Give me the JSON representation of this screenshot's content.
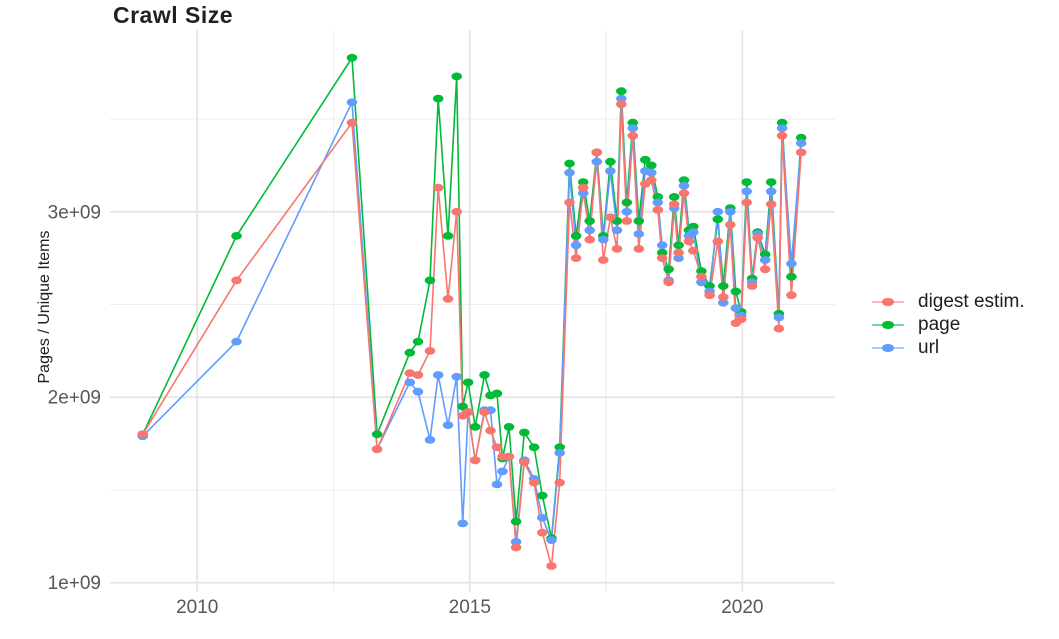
{
  "chart": {
    "title": "Crawl Size",
    "y_axis_label": "Pages / Unique Items"
  },
  "legend": {
    "items": [
      {
        "label": "digest estim.",
        "color": "#F8766D"
      },
      {
        "label": "page",
        "color": "#00BA38"
      },
      {
        "label": "url",
        "color": "#619CFF"
      }
    ]
  },
  "chart_data": {
    "type": "line",
    "title": "Crawl Size",
    "xlabel": "",
    "ylabel": "Pages / Unique Items",
    "x_unit": "decimal year (crawl date)",
    "values_unit": "billions (value x 1e9 pages / unique items)",
    "grid": true,
    "legend_position": "right",
    "background": "#FFFFFF",
    "gridline_major_color": "#E4E4E4",
    "gridline_minor_color": "#EDEDED",
    "x_domain": [
      2008.4,
      2021.7
    ],
    "y_domain": [
      0.95,
      3.98
    ],
    "x_ticks": {
      "major": [
        2010,
        2015,
        2020
      ],
      "labels": [
        "2010",
        "2015",
        "2020"
      ],
      "minor": [
        2012.5,
        2017.5
      ]
    },
    "y_ticks": {
      "major": [
        1,
        2,
        3
      ],
      "labels": [
        "1e+09",
        "2e+09",
        "3e+09"
      ],
      "minor": [
        1.5,
        2.5,
        3.5
      ]
    },
    "x": [
      2009.0,
      2010.72,
      2012.84,
      2013.3,
      2013.9,
      2014.05,
      2014.27,
      2014.42,
      2014.6,
      2014.76,
      2014.87,
      2014.97,
      2015.1,
      2015.27,
      2015.38,
      2015.5,
      2015.6,
      2015.72,
      2015.85,
      2016.0,
      2016.18,
      2016.33,
      2016.5,
      2016.65,
      2016.83,
      2016.95,
      2017.08,
      2017.2,
      2017.33,
      2017.45,
      2017.58,
      2017.7,
      2017.78,
      2017.88,
      2017.99,
      2018.1,
      2018.22,
      2018.33,
      2018.45,
      2018.53,
      2018.65,
      2018.75,
      2018.83,
      2018.93,
      2019.02,
      2019.1,
      2019.25,
      2019.4,
      2019.55,
      2019.65,
      2019.78,
      2019.88,
      2019.98,
      2020.08,
      2020.18,
      2020.28,
      2020.42,
      2020.53,
      2020.67,
      2020.73,
      2020.9,
      2021.08
    ],
    "series": [
      {
        "name": "page",
        "color": "#00BA38",
        "values": [
          1.8,
          2.87,
          3.83,
          1.8,
          2.24,
          2.3,
          2.63,
          3.61,
          2.87,
          3.73,
          1.95,
          2.08,
          1.84,
          2.12,
          2.01,
          2.02,
          1.67,
          1.84,
          1.33,
          1.81,
          1.73,
          1.47,
          1.24,
          1.73,
          3.26,
          2.87,
          3.16,
          2.95,
          3.32,
          2.87,
          3.27,
          2.95,
          3.65,
          3.05,
          3.48,
          2.95,
          3.28,
          3.25,
          3.08,
          2.78,
          2.69,
          3.08,
          2.82,
          3.17,
          2.9,
          2.92,
          2.68,
          2.6,
          2.96,
          2.6,
          3.02,
          2.57,
          2.46,
          3.16,
          2.64,
          2.89,
          2.77,
          3.16,
          2.45,
          3.48,
          2.65,
          3.4
        ]
      },
      {
        "name": "url",
        "color": "#619CFF",
        "values": [
          1.79,
          2.3,
          3.59,
          1.72,
          2.08,
          2.03,
          1.77,
          2.12,
          1.85,
          2.11,
          1.32,
          1.92,
          1.66,
          1.93,
          1.93,
          1.53,
          1.6,
          1.68,
          1.22,
          1.66,
          1.56,
          1.35,
          1.23,
          1.7,
          3.21,
          2.82,
          3.1,
          2.9,
          3.27,
          2.85,
          3.22,
          2.9,
          3.61,
          3.0,
          3.45,
          2.88,
          3.22,
          3.21,
          3.05,
          2.82,
          2.63,
          3.02,
          2.75,
          3.14,
          2.87,
          2.89,
          2.62,
          2.57,
          3.0,
          2.51,
          3.0,
          2.48,
          2.44,
          3.11,
          2.62,
          2.88,
          2.74,
          3.11,
          2.43,
          3.45,
          2.72,
          3.37
        ]
      },
      {
        "name": "digest estim.",
        "color": "#F8766D",
        "values": [
          1.8,
          2.63,
          3.48,
          1.72,
          2.13,
          2.12,
          2.25,
          3.13,
          2.53,
          3.0,
          1.9,
          1.92,
          1.66,
          1.92,
          1.82,
          1.73,
          1.68,
          1.68,
          1.19,
          1.65,
          1.54,
          1.27,
          1.09,
          1.54,
          3.05,
          2.75,
          3.13,
          2.85,
          3.32,
          2.74,
          2.97,
          2.8,
          3.58,
          2.95,
          3.41,
          2.8,
          3.15,
          3.17,
          3.01,
          2.75,
          2.62,
          3.04,
          2.78,
          3.1,
          2.84,
          2.79,
          2.65,
          2.55,
          2.84,
          2.54,
          2.93,
          2.4,
          2.42,
          3.05,
          2.6,
          2.86,
          2.69,
          3.04,
          2.37,
          3.41,
          2.55,
          3.32
        ]
      }
    ],
    "draw_order": [
      "page",
      "url",
      "digest estim."
    ]
  }
}
